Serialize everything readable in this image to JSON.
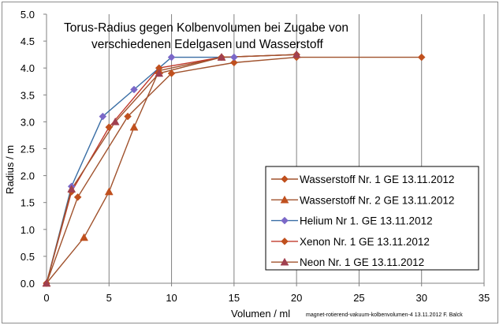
{
  "chart_data": {
    "type": "line",
    "title_line1": "Torus-Radius gegen Kolbenvolumen bei Zugabe von",
    "title_line2": "verschiedenen Edelgasen und Wasserstoff",
    "xlabel": "Volumen / ml",
    "ylabel": "Radius / m",
    "caption": "magnet-rotierend-vakuum-kolbenvolumen-4 13.11.2012 F. Balck",
    "xlim": [
      0,
      35
    ],
    "ylim": [
      0,
      5
    ],
    "x_ticks": [
      "0",
      "5",
      "10",
      "15",
      "20",
      "25",
      "30",
      "35"
    ],
    "y_ticks": [
      "0.0",
      "0.5",
      "1.0",
      "1.5",
      "2.0",
      "2.5",
      "3.0",
      "3.5",
      "4.0",
      "4.5",
      "5.0"
    ],
    "grid": "vertical",
    "legend_position": "lower-right",
    "series": [
      {
        "name": "Wasserstoff Nr. 1 GE 13.11.2012",
        "marker": "diamond",
        "line_color": "#a0522d",
        "marker_color": "#c0501e",
        "points": [
          [
            0,
            0
          ],
          [
            2.5,
            1.6
          ],
          [
            6.5,
            3.1
          ],
          [
            10,
            3.9
          ],
          [
            15,
            4.1
          ],
          [
            20,
            4.2
          ],
          [
            30,
            4.2
          ]
        ]
      },
      {
        "name": "Wasserstoff Nr. 2 GE 13.11.2012",
        "marker": "triangle",
        "line_color": "#a0522d",
        "marker_color": "#c0501e",
        "points": [
          [
            0,
            0
          ],
          [
            3,
            0.85
          ],
          [
            5,
            1.7
          ],
          [
            7,
            2.9
          ],
          [
            9,
            3.95
          ],
          [
            14,
            4.2
          ],
          [
            20,
            4.25
          ]
        ]
      },
      {
        "name": "Helium Nr 1. GE  13.11.2012",
        "marker": "diamond",
        "line_color": "#3a6ea5",
        "marker_color": "#7b68c8",
        "points": [
          [
            0,
            0
          ],
          [
            2,
            1.8
          ],
          [
            4.5,
            3.1
          ],
          [
            7,
            3.6
          ],
          [
            10,
            4.2
          ],
          [
            14,
            4.2
          ],
          [
            15,
            4.2
          ]
        ]
      },
      {
        "name": "Xenon Nr. 1  GE  13.11.2012",
        "marker": "diamond",
        "line_color": "#c0392b",
        "marker_color": "#c0501e",
        "points": [
          [
            0,
            0
          ],
          [
            2,
            1.7
          ],
          [
            5,
            2.9
          ],
          [
            9,
            4.0
          ],
          [
            14,
            4.2
          ],
          [
            20,
            4.25
          ]
        ]
      },
      {
        "name": "Neon Nr. 1 GE  13.11.2012",
        "marker": "triangle",
        "line_color": "#a0522d",
        "marker_color": "#a04050",
        "points": [
          [
            0,
            0
          ],
          [
            2,
            1.75
          ],
          [
            5.5,
            3.0
          ],
          [
            9,
            3.9
          ],
          [
            14,
            4.2
          ],
          [
            20,
            4.25
          ]
        ]
      }
    ]
  }
}
